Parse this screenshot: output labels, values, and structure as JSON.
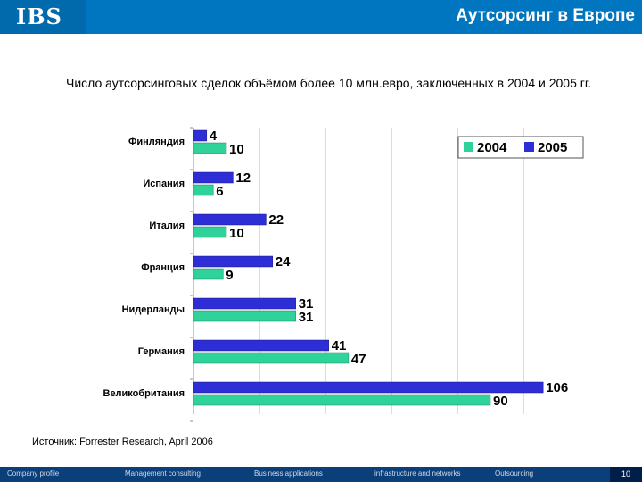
{
  "header": {
    "logo_text": "IBS",
    "title": "Аутсорсинг в Европе"
  },
  "chart_data": {
    "type": "bar",
    "orientation": "horizontal",
    "title": "Число аутсорсинговых сделок объёмом более 10 млн.евро, заключенных в 2004 и 2005 гг.",
    "categories": [
      "Финляндия",
      "Испания",
      "Италия",
      "Франция",
      "Нидерланды",
      "Германия",
      "Великобритания"
    ],
    "series": [
      {
        "name": "2005",
        "color": "#2e2ed6",
        "values": [
          4,
          12,
          22,
          24,
          31,
          41,
          106
        ]
      },
      {
        "name": "2004",
        "color": "#2fd39a",
        "values": [
          10,
          6,
          10,
          9,
          31,
          47,
          90
        ]
      }
    ],
    "xlim": [
      0,
      110
    ],
    "grid": true,
    "legend_position": "top-right",
    "legend_order": [
      "2004",
      "2005"
    ]
  },
  "source_text": "Источник: Forrester Research, April 2006",
  "footer": {
    "items": [
      "Company profile",
      "Management consulting",
      "Business applications",
      "infrastructure and networks",
      "Outsourcing"
    ],
    "page_number": "10"
  }
}
